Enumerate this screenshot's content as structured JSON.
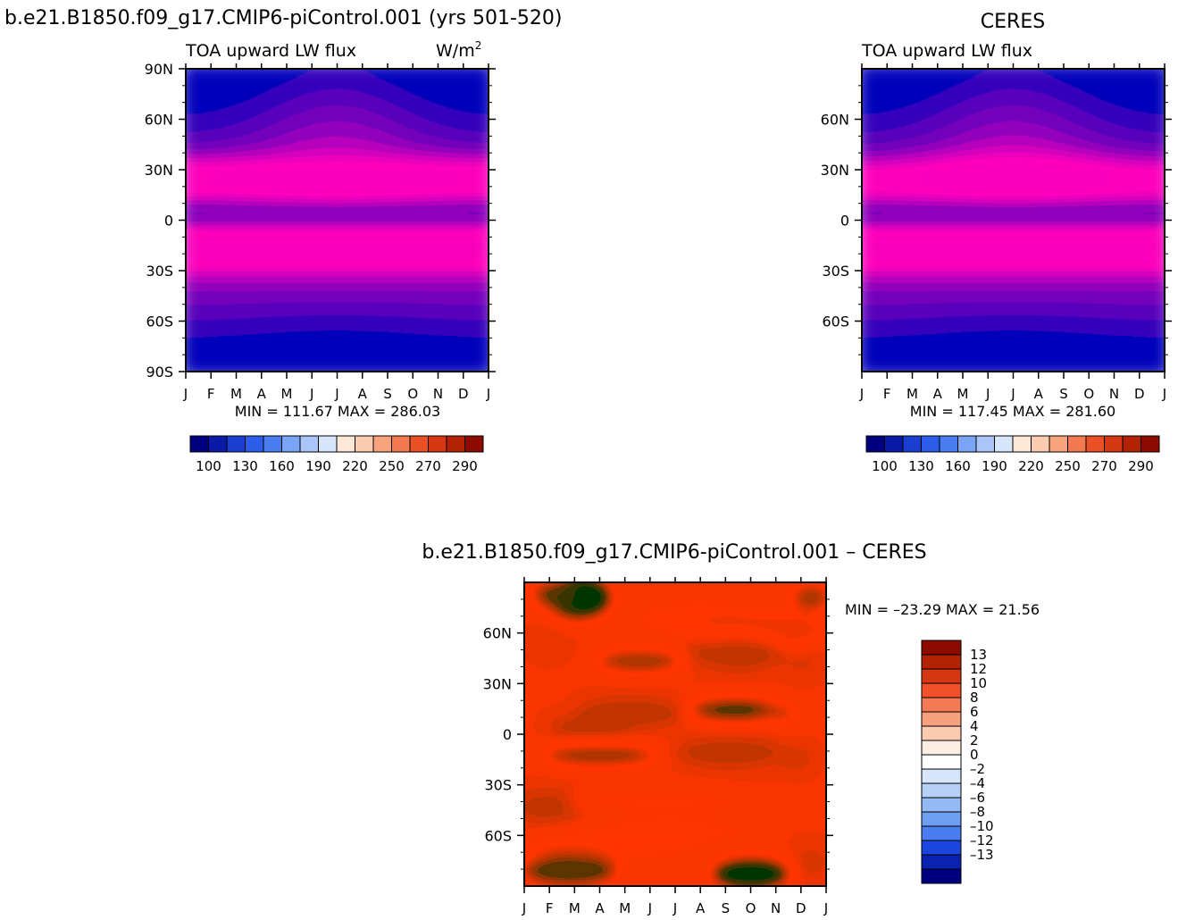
{
  "chart_data": [
    {
      "type": "heatmap",
      "id": "model",
      "title": "b.e21.B1850.f09_g17.CMIP6-piControl.001 (yrs 501-520)",
      "subtitle": "TOA upward LW flux",
      "units": "W/m",
      "units_exp": "2",
      "x_ticks": [
        "J",
        "F",
        "M",
        "A",
        "M",
        "J",
        "J",
        "A",
        "S",
        "O",
        "N",
        "D",
        "J"
      ],
      "y_ticks": [
        "90N",
        "60N",
        "30N",
        "0",
        "30S",
        "60S",
        "90S"
      ],
      "stats": "MIN = 111.67 MAX = 286.03",
      "min": 111.67,
      "max": 286.03,
      "colorbar_labels": [
        "100",
        "130",
        "160",
        "190",
        "220",
        "250",
        "270",
        "290"
      ]
    },
    {
      "type": "heatmap",
      "id": "obs",
      "title": "CERES",
      "subtitle": "TOA upward LW flux",
      "x_ticks": [
        "J",
        "F",
        "M",
        "A",
        "M",
        "J",
        "J",
        "A",
        "S",
        "O",
        "N",
        "D",
        "J"
      ],
      "y_ticks": [
        "60N",
        "30N",
        "0",
        "30S",
        "60S"
      ],
      "stats": "MIN = 117.45 MAX = 281.60",
      "min": 117.45,
      "max": 281.6,
      "colorbar_labels": [
        "100",
        "130",
        "160",
        "190",
        "220",
        "250",
        "270",
        "290"
      ]
    },
    {
      "type": "heatmap",
      "id": "diff",
      "title": "b.e21.B1850.f09_g17.CMIP6-piControl.001 – CERES",
      "x_ticks": [
        "J",
        "F",
        "M",
        "A",
        "M",
        "J",
        "J",
        "A",
        "S",
        "O",
        "N",
        "D",
        "J"
      ],
      "y_ticks": [
        "60N",
        "30N",
        "0",
        "30S",
        "60S"
      ],
      "stats": "MIN = –23.29 MAX =  21.56",
      "min": -23.29,
      "max": 21.56,
      "colorbar_labels": [
        "13",
        "12",
        "10",
        "8",
        "6",
        "4",
        "2",
        "0",
        "–2",
        "–4",
        "–6",
        "–8",
        "–10",
        "–12",
        "–13"
      ]
    }
  ],
  "colors": {
    "flux": [
      "#00007f",
      "#0a1aa6",
      "#1a3fd0",
      "#2c5de8",
      "#4a7ef0",
      "#7aa4f4",
      "#aac6f8",
      "#d8e6fb",
      "#fde8d8",
      "#fbcdb0",
      "#f7a47e",
      "#f27a52",
      "#ea5026",
      "#d43812",
      "#b22204",
      "#8c0a00"
    ],
    "diff": [
      "#8c0a00",
      "#b22204",
      "#d43812",
      "#f2502a",
      "#f37a55",
      "#f7a07e",
      "#fbccb0",
      "#fdeee3",
      "#ffffff",
      "#d8e6fb",
      "#b6d0f8",
      "#95b9f5",
      "#6f9ff2",
      "#4a7ef0",
      "#1a46de",
      "#0a22b0",
      "#00007f"
    ]
  }
}
